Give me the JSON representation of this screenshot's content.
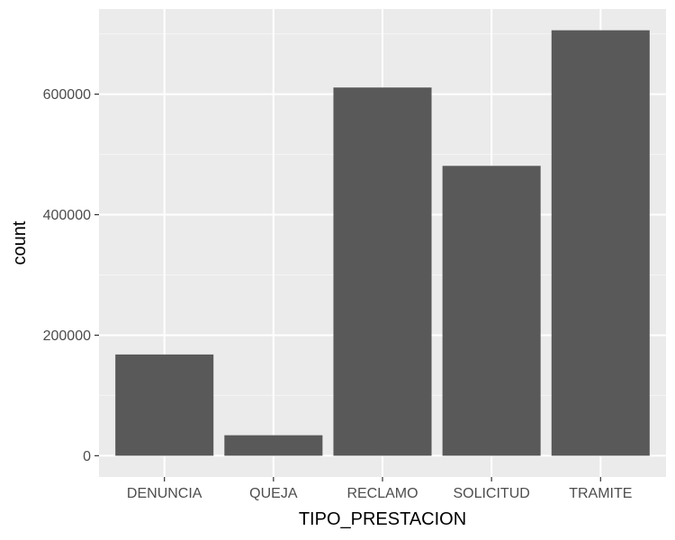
{
  "chart_data": {
    "type": "bar",
    "xlabel": "TIPO_PRESTACION",
    "ylabel": "count",
    "categories": [
      "DENUNCIA",
      "QUEJA",
      "RECLAMO",
      "SOLICITUD",
      "TRAMITE"
    ],
    "values": [
      168000,
      34000,
      611000,
      481000,
      706000
    ],
    "ylim": [
      -35300,
      741300
    ],
    "yticks": [
      0,
      200000,
      400000,
      600000
    ],
    "ytick_labels": [
      "0",
      "200000",
      "400000",
      "600000"
    ],
    "ygrid_minor": [
      100000,
      300000,
      500000,
      700000
    ],
    "grid": true,
    "legend": "none",
    "colors": {
      "panel": "#ebebeb",
      "grid_major": "#ffffff",
      "grid_minor": "#f5f5f5",
      "bar": "#595959",
      "tick": "#333333"
    }
  }
}
